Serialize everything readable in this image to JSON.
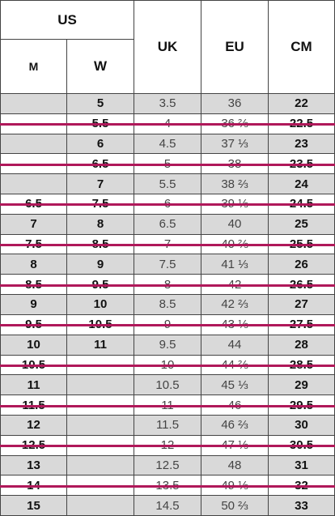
{
  "header": {
    "us": "US",
    "m": "M",
    "w": "W",
    "uk": "UK",
    "eu": "EU",
    "cm": "CM"
  },
  "table": {
    "rows": [
      {
        "m": null,
        "w": "5",
        "uk": "3.5",
        "eu": "36",
        "cm": "22",
        "struck": false
      },
      {
        "m": null,
        "w": "5.5",
        "uk": "4",
        "eu": "36 ⅔",
        "cm": "22.5",
        "struck": true
      },
      {
        "m": null,
        "w": "6",
        "uk": "4.5",
        "eu": "37 ⅓",
        "cm": "23",
        "struck": false
      },
      {
        "m": null,
        "w": "6.5",
        "uk": "5",
        "eu": "38",
        "cm": "23.5",
        "struck": true
      },
      {
        "m": null,
        "w": "7",
        "uk": "5.5",
        "eu": "38 ⅔",
        "cm": "24",
        "struck": false
      },
      {
        "m": "6.5",
        "w": "7.5",
        "uk": "6",
        "eu": "39 ⅓",
        "cm": "24.5",
        "struck": true
      },
      {
        "m": "7",
        "w": "8",
        "uk": "6.5",
        "eu": "40",
        "cm": "25",
        "struck": false
      },
      {
        "m": "7.5",
        "w": "8.5",
        "uk": "7",
        "eu": "40 ⅔",
        "cm": "25.5",
        "struck": true
      },
      {
        "m": "8",
        "w": "9",
        "uk": "7.5",
        "eu": "41 ⅓",
        "cm": "26",
        "struck": false
      },
      {
        "m": "8.5",
        "w": "9.5",
        "uk": "8",
        "eu": "42",
        "cm": "26.5",
        "struck": true
      },
      {
        "m": "9",
        "w": "10",
        "uk": "8.5",
        "eu": "42 ⅔",
        "cm": "27",
        "struck": false
      },
      {
        "m": "9.5",
        "w": "10.5",
        "uk": "9",
        "eu": "43 ⅓",
        "cm": "27.5",
        "struck": true
      },
      {
        "m": "10",
        "w": "11",
        "uk": "9.5",
        "eu": "44",
        "cm": "28",
        "struck": false
      },
      {
        "m": "10.5",
        "w": null,
        "uk": "10",
        "eu": "44 ⅔",
        "cm": "28.5",
        "struck": true
      },
      {
        "m": "11",
        "w": null,
        "uk": "10.5",
        "eu": "45 ⅓",
        "cm": "29",
        "struck": false
      },
      {
        "m": "11.5",
        "w": null,
        "uk": "11",
        "eu": "46",
        "cm": "29.5",
        "struck": true
      },
      {
        "m": "12",
        "w": null,
        "uk": "11.5",
        "eu": "46 ⅔",
        "cm": "30",
        "struck": false
      },
      {
        "m": "12.5",
        "w": null,
        "uk": "12",
        "eu": "47 ⅓",
        "cm": "30.5",
        "struck": true
      },
      {
        "m": "13",
        "w": null,
        "uk": "12.5",
        "eu": "48",
        "cm": "31",
        "struck": false
      },
      {
        "m": "14",
        "w": null,
        "uk": "13.5",
        "eu": "49 ⅓",
        "cm": "32",
        "struck": true
      },
      {
        "m": "15",
        "w": null,
        "uk": "14.5",
        "eu": "50 ⅔",
        "cm": "33",
        "struck": false
      }
    ]
  }
}
